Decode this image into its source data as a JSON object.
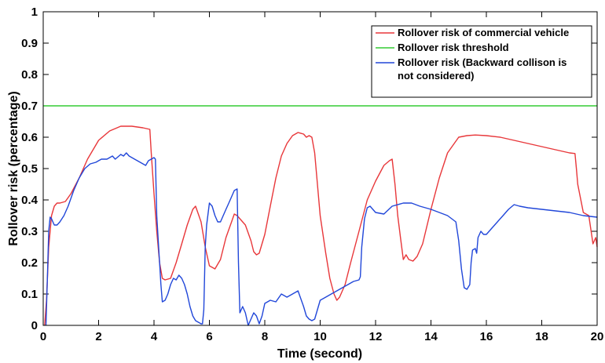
{
  "chart_data": {
    "type": "line",
    "title": "",
    "xlabel": "Time (second)",
    "ylabel": "Rollover risk (percentage)",
    "xlim": [
      0,
      20
    ],
    "ylim": [
      0,
      1
    ],
    "xticks": [
      0,
      2,
      4,
      6,
      8,
      10,
      12,
      14,
      16,
      18,
      20
    ],
    "yticks": [
      0,
      0.1,
      0.2,
      0.3,
      0.4,
      0.5,
      0.6,
      0.7,
      0.8,
      0.9,
      1
    ],
    "grid": false,
    "legend_position": "top-right",
    "series": [
      {
        "name": "Rollover risk of commercial vehicle",
        "color": "#e8373a",
        "x": [
          0.05,
          0.12,
          0.2,
          0.3,
          0.4,
          0.5,
          0.6,
          0.8,
          1.0,
          1.3,
          1.6,
          2.0,
          2.4,
          2.8,
          3.2,
          3.6,
          3.85,
          3.9,
          4.0,
          4.1,
          4.2,
          4.3,
          4.4,
          4.6,
          4.8,
          5.0,
          5.2,
          5.4,
          5.5,
          5.7,
          5.85,
          6.0,
          6.2,
          6.4,
          6.6,
          6.8,
          6.9,
          7.0,
          7.1,
          7.3,
          7.5,
          7.6,
          7.7,
          7.8,
          8.0,
          8.2,
          8.4,
          8.6,
          8.8,
          9.0,
          9.2,
          9.4,
          9.5,
          9.6,
          9.7,
          9.8,
          9.9,
          10.0,
          10.2,
          10.35,
          10.5,
          10.6,
          10.7,
          10.9,
          11.1,
          11.4,
          11.7,
          12.0,
          12.3,
          12.5,
          12.6,
          12.7,
          12.8,
          12.9,
          13.0,
          13.1,
          13.2,
          13.35,
          13.5,
          13.7,
          14.0,
          14.3,
          14.6,
          15.0,
          15.3,
          15.6,
          16.0,
          16.5,
          17.0,
          17.5,
          18.0,
          18.5,
          19.0,
          19.2,
          19.25,
          19.3,
          19.5,
          19.7,
          19.85,
          19.95,
          20.0
        ],
        "values": [
          0.0,
          0.08,
          0.25,
          0.35,
          0.38,
          0.39,
          0.39,
          0.395,
          0.42,
          0.47,
          0.53,
          0.59,
          0.62,
          0.635,
          0.635,
          0.63,
          0.625,
          0.55,
          0.42,
          0.3,
          0.2,
          0.15,
          0.145,
          0.15,
          0.2,
          0.26,
          0.32,
          0.37,
          0.38,
          0.33,
          0.25,
          0.19,
          0.18,
          0.21,
          0.28,
          0.33,
          0.355,
          0.35,
          0.34,
          0.32,
          0.27,
          0.235,
          0.225,
          0.23,
          0.29,
          0.38,
          0.47,
          0.54,
          0.58,
          0.605,
          0.615,
          0.61,
          0.6,
          0.605,
          0.6,
          0.55,
          0.45,
          0.35,
          0.23,
          0.15,
          0.1,
          0.08,
          0.09,
          0.13,
          0.2,
          0.3,
          0.4,
          0.46,
          0.51,
          0.525,
          0.53,
          0.45,
          0.35,
          0.28,
          0.21,
          0.225,
          0.21,
          0.205,
          0.22,
          0.26,
          0.37,
          0.47,
          0.55,
          0.6,
          0.605,
          0.607,
          0.605,
          0.6,
          0.59,
          0.58,
          0.57,
          0.56,
          0.55,
          0.548,
          0.5,
          0.45,
          0.36,
          0.35,
          0.26,
          0.28,
          0.25
        ]
      },
      {
        "name": "Rollover risk threshold",
        "color": "#33cc33",
        "x": [
          0,
          20
        ],
        "values": [
          0.7,
          0.7
        ]
      },
      {
        "name": "Rollover risk (Backward collison is not considered)",
        "color": "#2147d9",
        "x": [
          0.1,
          0.15,
          0.2,
          0.25,
          0.3,
          0.35,
          0.4,
          0.5,
          0.6,
          0.75,
          0.9,
          1.1,
          1.3,
          1.5,
          1.7,
          1.9,
          2.1,
          2.3,
          2.5,
          2.6,
          2.8,
          2.9,
          3.0,
          3.1,
          3.3,
          3.5,
          3.7,
          3.8,
          3.9,
          4.0,
          4.05,
          4.1,
          4.2,
          4.25,
          4.3,
          4.4,
          4.5,
          4.6,
          4.7,
          4.8,
          4.9,
          5.0,
          5.1,
          5.2,
          5.3,
          5.4,
          5.5,
          5.6,
          5.7,
          5.75,
          5.8,
          5.85,
          5.9,
          6.0,
          6.1,
          6.2,
          6.3,
          6.4,
          6.5,
          6.6,
          6.7,
          6.8,
          6.9,
          7.0,
          7.05,
          7.1,
          7.2,
          7.3,
          7.35,
          7.4,
          7.5,
          7.6,
          7.7,
          7.8,
          7.9,
          8.0,
          8.2,
          8.4,
          8.6,
          8.8,
          9.0,
          9.2,
          9.4,
          9.5,
          9.6,
          9.7,
          9.8,
          9.9,
          10.0,
          10.2,
          10.4,
          10.6,
          10.8,
          11.0,
          11.2,
          11.4,
          11.45,
          11.5,
          11.6,
          11.7,
          11.8,
          12.0,
          12.3,
          12.6,
          13.0,
          13.3,
          13.6,
          14.0,
          14.3,
          14.6,
          14.9,
          15.0,
          15.1,
          15.2,
          15.3,
          15.4,
          15.45,
          15.5,
          15.6,
          15.65,
          15.7,
          15.8,
          15.9,
          16.0,
          16.2,
          16.4,
          16.6,
          16.8,
          17.0,
          17.2,
          17.5,
          18.0,
          18.5,
          19.0,
          19.5,
          20.0
        ],
        "values": [
          0.0,
          0.15,
          0.3,
          0.345,
          0.34,
          0.33,
          0.32,
          0.32,
          0.33,
          0.35,
          0.38,
          0.43,
          0.47,
          0.5,
          0.515,
          0.52,
          0.53,
          0.53,
          0.54,
          0.53,
          0.545,
          0.54,
          0.55,
          0.54,
          0.53,
          0.52,
          0.51,
          0.525,
          0.53,
          0.535,
          0.53,
          0.35,
          0.2,
          0.13,
          0.075,
          0.08,
          0.1,
          0.13,
          0.15,
          0.145,
          0.16,
          0.15,
          0.13,
          0.1,
          0.06,
          0.03,
          0.015,
          0.01,
          0.005,
          0.005,
          0.05,
          0.25,
          0.32,
          0.39,
          0.38,
          0.35,
          0.33,
          0.33,
          0.35,
          0.37,
          0.39,
          0.41,
          0.43,
          0.435,
          0.2,
          0.04,
          0.06,
          0.04,
          0.02,
          0.0,
          0.02,
          0.04,
          0.03,
          0.005,
          0.03,
          0.07,
          0.08,
          0.075,
          0.1,
          0.09,
          0.1,
          0.11,
          0.06,
          0.03,
          0.02,
          0.015,
          0.02,
          0.05,
          0.08,
          0.09,
          0.1,
          0.11,
          0.12,
          0.13,
          0.14,
          0.145,
          0.155,
          0.25,
          0.34,
          0.375,
          0.38,
          0.36,
          0.355,
          0.38,
          0.39,
          0.39,
          0.38,
          0.37,
          0.36,
          0.35,
          0.33,
          0.27,
          0.18,
          0.12,
          0.115,
          0.13,
          0.2,
          0.24,
          0.245,
          0.23,
          0.28,
          0.3,
          0.29,
          0.29,
          0.31,
          0.33,
          0.35,
          0.37,
          0.385,
          0.38,
          0.375,
          0.37,
          0.365,
          0.36,
          0.35,
          0.345
        ]
      }
    ]
  },
  "legend_entries": [
    {
      "lines": [
        "Rollover risk of commercial vehicle"
      ],
      "color": "#e8373a"
    },
    {
      "lines": [
        "Rollover risk threshold"
      ],
      "color": "#33cc33"
    },
    {
      "lines": [
        "Rollover risk (Backward collison is",
        "not considered)"
      ],
      "color": "#2147d9"
    }
  ]
}
